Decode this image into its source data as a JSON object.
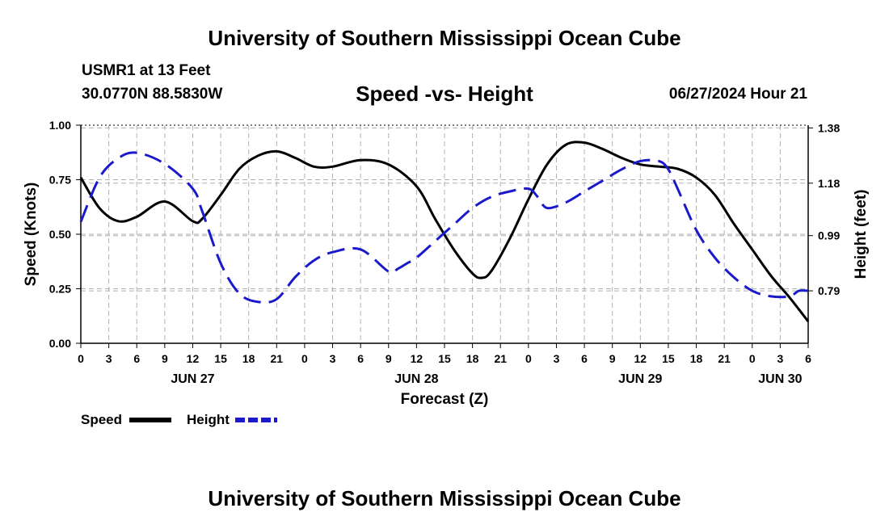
{
  "header": {
    "title": "University of Southern Mississippi Ocean Cube",
    "station": "USMR1 at 13 Feet",
    "coords": "30.0770N  88.5830W",
    "chart_title": "Speed -vs- Height",
    "datetime": "06/27/2024 Hour 21"
  },
  "footer": {
    "title": "University of Southern Mississippi Ocean Cube"
  },
  "colors": {
    "speed": "#000000",
    "height": "#1a1acc",
    "grid": "#b0b0b0"
  },
  "chart_data": {
    "type": "line",
    "title": "Speed -vs- Height",
    "xlabel": "Forecast (Z)",
    "ylabel": "Speed (Knots)",
    "y2label": "Height (feet)",
    "xlim": [
      0,
      78
    ],
    "ylim": [
      0,
      1.0
    ],
    "y2lim": [
      0.6,
      1.39
    ],
    "x_ticks": [
      0,
      3,
      6,
      9,
      12,
      15,
      18,
      21,
      24,
      27,
      30,
      33,
      36,
      39,
      42,
      45,
      48,
      51,
      54,
      57,
      60,
      63,
      66,
      69,
      72,
      75,
      78
    ],
    "x_tick_labels": [
      "0",
      "3",
      "6",
      "9",
      "12",
      "15",
      "18",
      "21",
      "0",
      "3",
      "6",
      "9",
      "12",
      "15",
      "18",
      "21",
      "0",
      "3",
      "6",
      "9",
      "12",
      "15",
      "18",
      "21",
      "0",
      "3",
      "6"
    ],
    "date_labels": [
      {
        "hour": 12,
        "label": "JUN 27"
      },
      {
        "hour": 36,
        "label": "JUN 28"
      },
      {
        "hour": 60,
        "label": "JUN 29"
      },
      {
        "hour": 75,
        "label": "JUN 30"
      }
    ],
    "y_ticks": [
      0,
      0.25,
      0.5,
      0.75,
      1.0
    ],
    "y_tick_labels": [
      "0.00",
      "0.25",
      "0.50",
      "0.75",
      "1.00"
    ],
    "y2_ticks": [
      0.79,
      0.99,
      1.18,
      1.38
    ],
    "y2_tick_labels": [
      "0.79",
      "0.99",
      "1.18",
      "1.38"
    ],
    "legend": [
      "Speed",
      "Height"
    ],
    "series": [
      {
        "name": "Speed",
        "axis": "left",
        "style": "solid",
        "x": [
          0,
          2,
          4,
          6,
          9,
          12,
          13,
          15,
          17,
          19,
          21,
          23,
          25,
          27,
          30,
          33,
          36,
          38,
          40,
          42,
          43,
          44,
          46,
          48,
          50,
          52,
          54,
          56,
          58,
          60,
          62,
          64,
          66,
          68,
          70,
          72,
          74,
          76,
          78
        ],
        "values": [
          0.76,
          0.62,
          0.56,
          0.58,
          0.65,
          0.56,
          0.57,
          0.68,
          0.8,
          0.86,
          0.88,
          0.85,
          0.81,
          0.81,
          0.84,
          0.82,
          0.72,
          0.57,
          0.43,
          0.32,
          0.3,
          0.33,
          0.48,
          0.66,
          0.82,
          0.91,
          0.92,
          0.89,
          0.85,
          0.82,
          0.81,
          0.8,
          0.76,
          0.68,
          0.55,
          0.43,
          0.31,
          0.21,
          0.1
        ]
      },
      {
        "name": "Height",
        "axis": "right",
        "style": "dashed",
        "x": [
          0,
          2,
          4,
          6,
          9,
          12,
          13,
          15,
          17,
          19,
          21,
          23,
          25,
          27,
          30,
          33,
          34,
          35,
          36,
          38,
          40,
          42,
          44,
          46,
          48,
          49,
          50,
          52,
          54,
          56,
          58,
          60,
          62,
          63,
          64,
          66,
          68,
          70,
          72,
          74,
          76,
          77,
          78
        ],
        "values": [
          1.04,
          1.2,
          1.27,
          1.29,
          1.25,
          1.16,
          1.08,
          0.89,
          0.78,
          0.75,
          0.76,
          0.84,
          0.9,
          0.93,
          0.94,
          0.86,
          0.87,
          0.89,
          0.91,
          0.97,
          1.03,
          1.09,
          1.13,
          1.15,
          1.16,
          1.13,
          1.09,
          1.11,
          1.15,
          1.19,
          1.23,
          1.26,
          1.26,
          1.23,
          1.16,
          1.01,
          0.91,
          0.84,
          0.79,
          0.77,
          0.77,
          0.79,
          0.79
        ]
      }
    ]
  }
}
